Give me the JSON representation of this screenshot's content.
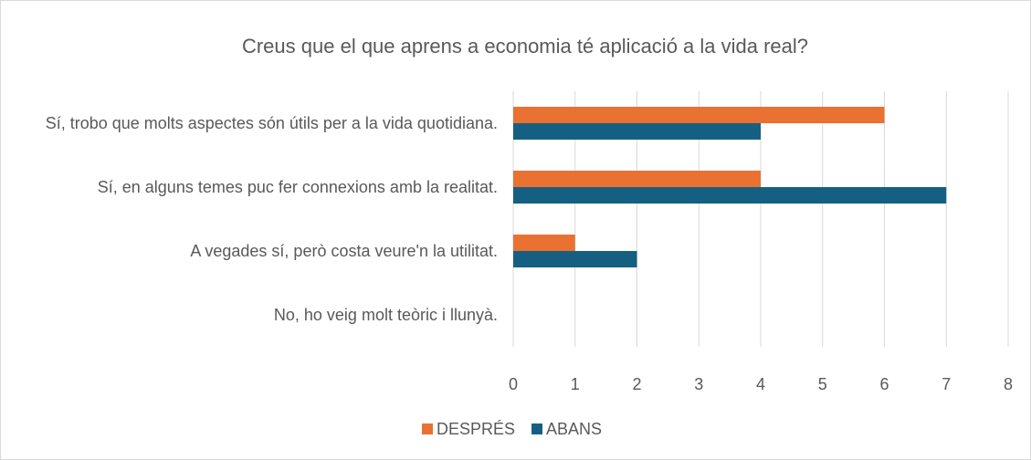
{
  "chart_data": {
    "type": "bar",
    "orientation": "horizontal",
    "title": "Creus que el que aprens a economia té aplicació a la vida real?",
    "categories": [
      "Sí, trobo que molts aspectes són útils per a la vida quotidiana.",
      "Sí, en alguns temes puc fer connexions amb la realitat.",
      "A vegades sí, però costa veure'n la utilitat.",
      "No, ho veig molt teòric i llunyà."
    ],
    "series": [
      {
        "name": "DESPRÉS",
        "color": "#e97132",
        "values": [
          6,
          4,
          1,
          0
        ]
      },
      {
        "name": "ABANS",
        "color": "#156082",
        "values": [
          4,
          7,
          2,
          0
        ]
      }
    ],
    "xlim": [
      0,
      8
    ],
    "xticks": [
      0,
      1,
      2,
      3,
      4,
      5,
      6,
      7,
      8
    ],
    "grid": true,
    "legend": "bottom"
  }
}
